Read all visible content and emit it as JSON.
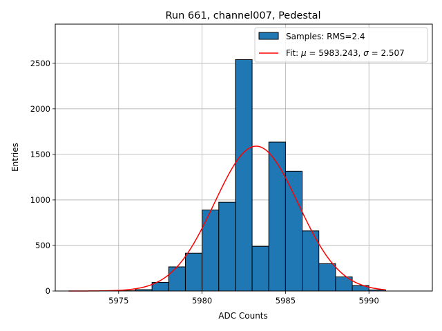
{
  "chart_data": {
    "type": "bar",
    "title": "Run 661, channel007, Pedestal",
    "xlabel": "ADC Counts",
    "ylabel": "Entries",
    "xlim": [
      5971.2,
      5993.8
    ],
    "ylim": [
      0,
      2930
    ],
    "xticks": [
      5975,
      5980,
      5985,
      5990
    ],
    "yticks": [
      0,
      500,
      1000,
      1500,
      2000,
      2500
    ],
    "grid": true,
    "legend_position": "top-right",
    "bar_color": "#1f77b4",
    "fit_color": "#ff0000",
    "histogram": {
      "name": "Samples: RMS=2.4",
      "bin_width": 1,
      "bins": [
        {
          "left": 5975,
          "count": 3
        },
        {
          "left": 5976,
          "count": 15
        },
        {
          "left": 5977,
          "count": 95
        },
        {
          "left": 5978,
          "count": 265
        },
        {
          "left": 5979,
          "count": 415
        },
        {
          "left": 5980,
          "count": 890
        },
        {
          "left": 5981,
          "count": 975
        },
        {
          "left": 5982,
          "count": 2540
        },
        {
          "left": 5983,
          "count": 490
        },
        {
          "left": 5984,
          "count": 1635
        },
        {
          "left": 5985,
          "count": 1315
        },
        {
          "left": 5986,
          "count": 660
        },
        {
          "left": 5987,
          "count": 300
        },
        {
          "left": 5988,
          "count": 155
        },
        {
          "left": 5989,
          "count": 60
        },
        {
          "left": 5990,
          "count": 12
        }
      ]
    },
    "fit": {
      "name": "Fit: $\\mu$ = 5983.243, $\\sigma$ = 2.507",
      "mu": 5983.243,
      "sigma": 2.507,
      "amplitude": 1590,
      "x_range": [
        5972,
        5991
      ]
    }
  }
}
